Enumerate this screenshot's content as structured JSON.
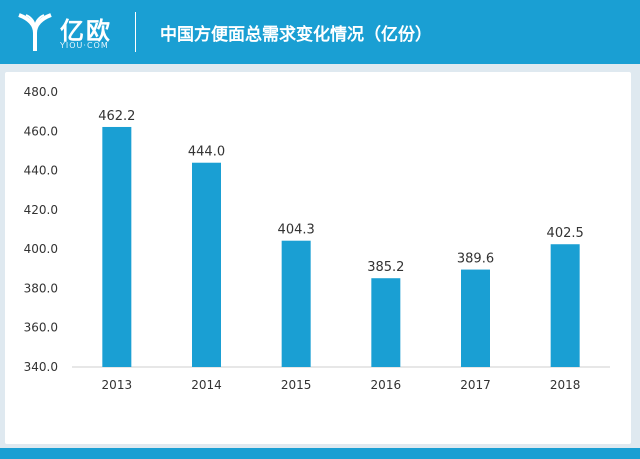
{
  "header": {
    "logo_text": "亿欧",
    "logo_sub": "YIOU·COM",
    "title": "中国方便面总需求变化情况（亿份）"
  },
  "colors": {
    "header_bg": "#1a9fd3",
    "bar": "#1a9fd3",
    "axis_text": "#333333"
  },
  "chart_data": {
    "type": "bar",
    "categories": [
      "2013",
      "2014",
      "2015",
      "2016",
      "2017",
      "2018"
    ],
    "values": [
      462.2,
      444.0,
      404.3,
      385.2,
      389.6,
      402.5
    ],
    "value_labels": [
      "462.2",
      "444.0",
      "404.3",
      "385.2",
      "389.6",
      "402.5"
    ],
    "ylim": [
      340,
      480
    ],
    "yticks": [
      "340.0",
      "360.0",
      "380.0",
      "400.0",
      "420.0",
      "440.0",
      "460.0",
      "480.0"
    ],
    "ytick_values": [
      340,
      360,
      380,
      400,
      420,
      440,
      460,
      480
    ],
    "grid": false,
    "legend": "none"
  }
}
